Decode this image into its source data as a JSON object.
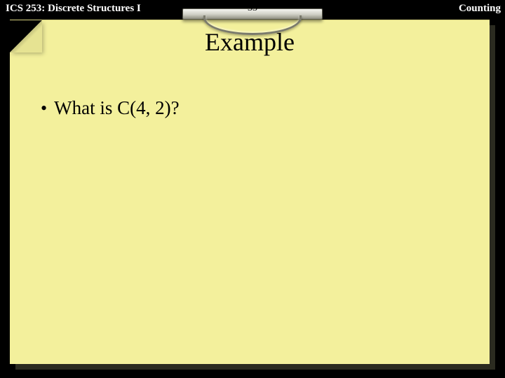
{
  "header": {
    "left": "ICS 253: Discrete Structures I",
    "page_number": "33",
    "right": "Counting"
  },
  "slide": {
    "title": "Example",
    "bullet_symbol": "•",
    "bullet_text": "What is C(4, 2)?"
  },
  "colors": {
    "background": "#000000",
    "sheet": "#f3f09c",
    "sheet_shadow": "#2b2b20",
    "header_text": "#ffffff",
    "body_text": "#000000"
  }
}
